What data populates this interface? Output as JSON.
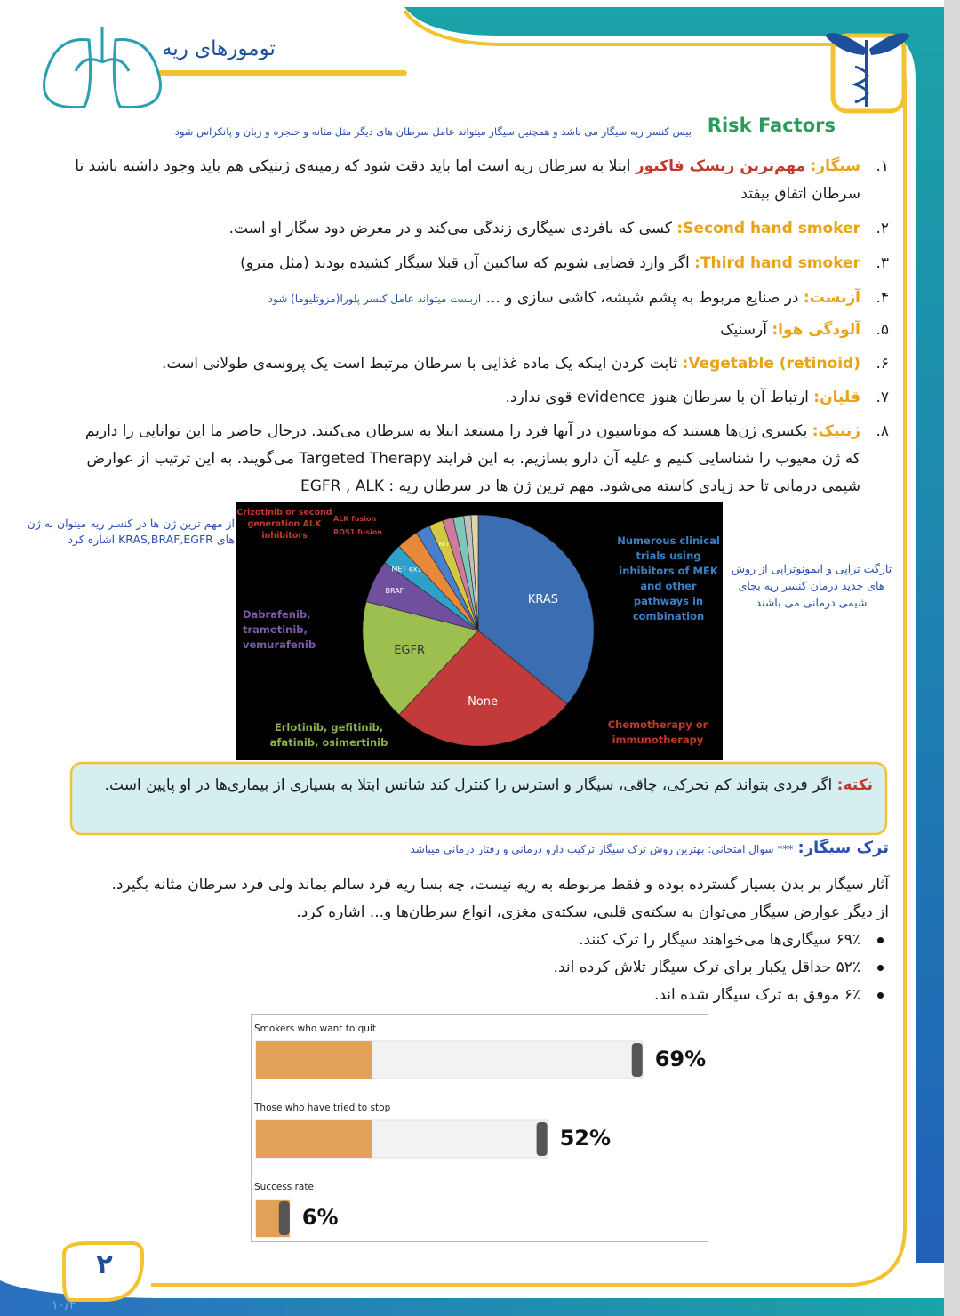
{
  "header": {
    "title": "تومورهای ریه"
  },
  "risk_factors": {
    "heading": "Risk Factors",
    "note": "بیس کنسر ریه سیگار می باشد و همچنین سیگار میتواند عامل سرطان های دیگر مثل مثانه و حنجره و زبان و پانکراس شود",
    "items": [
      {
        "number": "۱.",
        "term": "سیگار:",
        "highlight": "مهم‌ترین ریسک فاکتور",
        "text": "ابتلا به سرطان ریه است اما باید دقت شود که زمینه‌ی ژنتیکی هم باید وجود داشته باشد تا سرطان اتفاق بیفتد"
      },
      {
        "number": "۲.",
        "term": "Second hand smoker:",
        "text": "کسی که بافردی سیگاری زندگی می‌کند و در معرض دود سگار او است."
      },
      {
        "number": "۳.",
        "term": "Third hand smoker:",
        "text": "اگر وارد فضایی شویم که ساکنین آن قبلا سیگار کشیده بودند (مثل مترو)"
      },
      {
        "number": "۴.",
        "term": "آزبست:",
        "text": "در صنایع مربوط به پشم شیشه، کاشی سازی و ...",
        "note": "آزبست میتواند عامل کنسر پلورا(مزوتلیوما) شود"
      },
      {
        "number": "۵.",
        "term": "آلودگی هوا:",
        "text": "آرسنیک"
      },
      {
        "number": "۶.",
        "term": "Vegetable (retinoid):",
        "text": "ثابت کردن اینکه یک ماده غذایی با سرطان مرتبط است یک پروسه‌ی طولانی است."
      },
      {
        "number": "۷.",
        "term": "قلیان:",
        "text": "ارتباط آن با سرطان هنوز evidence قوی ندارد."
      },
      {
        "number": "۸.",
        "term": "ژنتیک:",
        "text": "یکسری ژن‌ها هستند که موتاسیون در آنها فرد را مستعد ابتلا به سرطان می‌کنند. درحال حاضر ما این توانایی را داریم که ژن معیوب را شناسایی کنیم و علیه آن دارو بسازیم. به این فرایند Targeted Therapy می‌گویند. به این ترتیب از عوارض شیمی درمانی تا حد زیادی کاسته می‌شود. مهم ترین ژن ها در سرطان ریه : EGFR , ALK"
      }
    ],
    "side_note_left": "از مهم ترین ژن ها در کنسر ریه میتوان به ژن های KRAS,BRAF,EGFR اشاره کرد",
    "side_note_right": "تارگت تراپی و ایمونوتراپی از روش های جدید درمان کنسر ریه بجای شیمی درمانی می باشند"
  },
  "tip": {
    "label": "نکته:",
    "text": "اگر فردی بتواند کم تحرکی، چاقی، سیگار و استرس را کنترل کند شانس ابتلا به بسیاری از بیماری‌ها در او پایین است."
  },
  "quitting": {
    "heading": "ترک سیگار:",
    "note": "*** سوال امتحانی: بهترین روش ترک سیگار ترکیب دارو درمانی و رفتار درمانی میباشد",
    "paragraphs": [
      "آثار سیگار بر بدن بسیار گسترده بوده و فقط مربوطه به ریه نیست، چه بسا ریه فرد سالم بماند ولی فرد سرطان مثانه بگیرد.",
      "از دیگر عوارض سیگار می‌توان به سکته‌ی قلبی، سکته‌ی مغزی، انواع سرطان‌ها و... اشاره کرد."
    ],
    "bullets": [
      "۶۹٪ سیگاری‌ها می‌خواهند سیگار را ترک کنند.",
      "۵۲٪ حداقل یکبار برای ترک سیگار تلاش کرده اند.",
      "۶٪ موفق به ترک سیگار شده اند."
    ]
  },
  "footer": {
    "page_number": "۲",
    "stamp": "۱۰/۲"
  },
  "chart_data": [
    {
      "type": "pie",
      "categories": [
        "KRAS",
        "None",
        "EGFR",
        "BRAF",
        "MET ex14",
        null,
        null,
        "RET",
        null,
        null,
        null,
        null
      ],
      "values": [
        36,
        26,
        17,
        6,
        3,
        3,
        2,
        2,
        1.5,
        1.5,
        1,
        1
      ],
      "colors": [
        "#3b6db3",
        "#c23a3a",
        "#9cbf4f",
        "#6f4f9e",
        "#2fa0c8",
        "#e8893a",
        "#4a7fd0",
        "#d4c840",
        "#d07aa0",
        "#7fc5b8",
        "#c0c0c0",
        "#e0d4a8"
      ],
      "annotations": [
        "Crizotinib or second generation ALK inhibitors",
        "ALK fusion",
        "ROS1 fusion",
        "Dabrafenib, trametinib, vemurafenib",
        "Erlotinib, gefitinib, afatinib, osimertinib",
        "Numerous clinical trials using inhibitors of MEK and other pathways in combination",
        "Chemotherapy or immunotherapy"
      ]
    },
    {
      "type": "bar",
      "categories": [
        "Smokers who want to quit",
        "Those who have tried to stop",
        "Success rate"
      ],
      "values": [
        69,
        52,
        6
      ],
      "value_labels": [
        "69%",
        "52%",
        "6%"
      ]
    }
  ]
}
